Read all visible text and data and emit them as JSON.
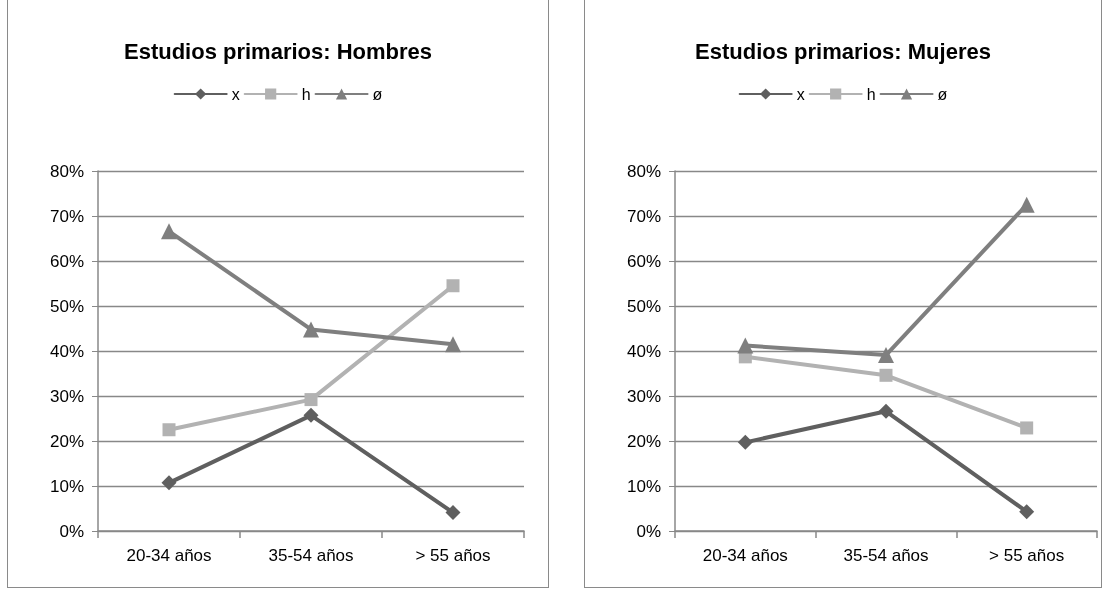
{
  "chart_data": [
    {
      "type": "line",
      "title": "Estudios primarios: Hombres",
      "categories": [
        "20-34 años",
        "35-54 años",
        "> 55 años"
      ],
      "series": [
        {
          "name": "x",
          "color": "#5f5f5f",
          "marker": "diamond",
          "values": [
            10.7,
            25.7,
            4.1
          ]
        },
        {
          "name": "h",
          "color": "#b2b2b2",
          "marker": "square",
          "values": [
            22.5,
            29.2,
            54.5
          ]
        },
        {
          "name": "ø",
          "color": "#7f7f7f",
          "marker": "triangle",
          "values": [
            66.6,
            44.8,
            41.5
          ]
        }
      ],
      "ylim": [
        0,
        80
      ],
      "yticks": [
        {
          "value": 0,
          "label": "0%"
        },
        {
          "value": 10,
          "label": "10%"
        },
        {
          "value": 20,
          "label": "20%"
        },
        {
          "value": 30,
          "label": "30%"
        },
        {
          "value": 40,
          "label": "40%"
        },
        {
          "value": 50,
          "label": "50%"
        },
        {
          "value": 60,
          "label": "60%"
        },
        {
          "value": 70,
          "label": "70%"
        },
        {
          "value": 80,
          "label": "80%"
        }
      ],
      "grid": "y",
      "legend": "top"
    },
    {
      "type": "line",
      "title": "Estudios primarios: Mujeres",
      "categories": [
        "20-34 años",
        "35-54 años",
        "> 55 años"
      ],
      "series": [
        {
          "name": "x",
          "color": "#5f5f5f",
          "marker": "diamond",
          "values": [
            19.7,
            26.6,
            4.3
          ]
        },
        {
          "name": "h",
          "color": "#b2b2b2",
          "marker": "square",
          "values": [
            38.7,
            34.6,
            22.9
          ]
        },
        {
          "name": "ø",
          "color": "#7f7f7f",
          "marker": "triangle",
          "values": [
            41.2,
            39.1,
            72.5
          ]
        }
      ],
      "ylim": [
        0,
        80
      ],
      "yticks": [
        {
          "value": 0,
          "label": "0%"
        },
        {
          "value": 10,
          "label": "10%"
        },
        {
          "value": 20,
          "label": "20%"
        },
        {
          "value": 30,
          "label": "30%"
        },
        {
          "value": 40,
          "label": "40%"
        },
        {
          "value": 50,
          "label": "50%"
        },
        {
          "value": 60,
          "label": "60%"
        },
        {
          "value": 70,
          "label": "70%"
        },
        {
          "value": 80,
          "label": "80%"
        }
      ],
      "grid": "y",
      "legend": "top"
    }
  ]
}
